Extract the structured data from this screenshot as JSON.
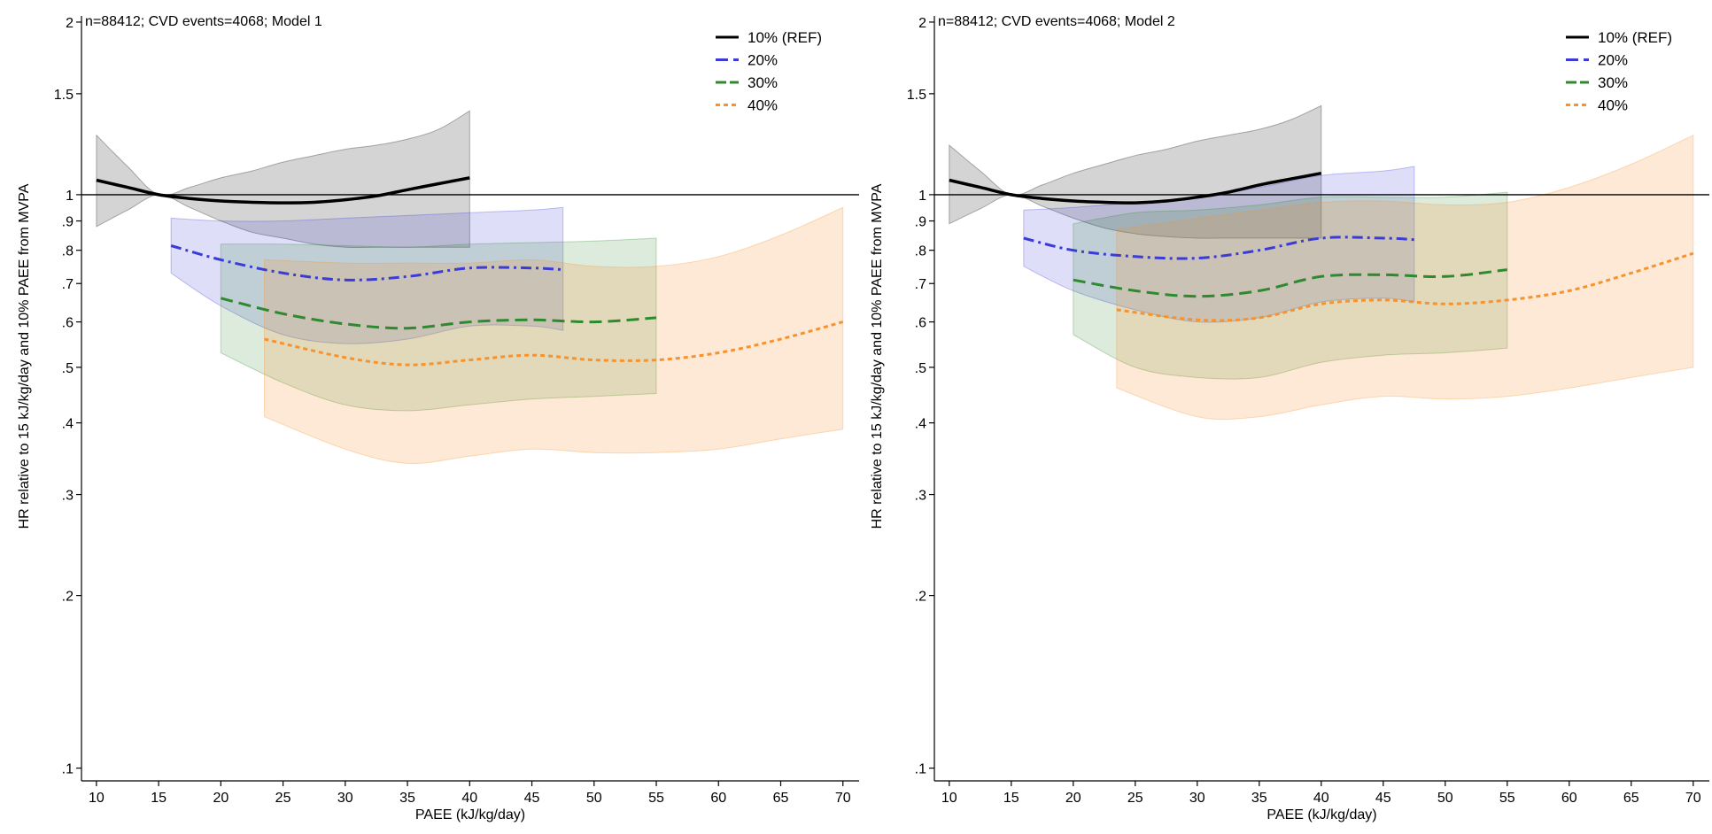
{
  "chart_data": [
    {
      "type": "line",
      "title": "n=88412; CVD events=4068; Model 1",
      "xlabel": "PAEE (kJ/kg/day)",
      "ylabel": "HR relative to 15 kJ/kg/day and 10% PAEE from MVPA",
      "xlim": [
        8.8,
        71.3
      ],
      "ylim": [
        0.095,
        2.05
      ],
      "y_scale": "log",
      "x_ticks": [
        10,
        15,
        20,
        25,
        30,
        35,
        40,
        45,
        50,
        55,
        60,
        65,
        70
      ],
      "y_ticks": [
        {
          "value": 2,
          "label": "2"
        },
        {
          "value": 1.5,
          "label": "1.5"
        },
        {
          "value": 1,
          "label": "1"
        },
        {
          "value": 0.9,
          "label": ".9"
        },
        {
          "value": 0.8,
          "label": ".8"
        },
        {
          "value": 0.7,
          "label": ".7"
        },
        {
          "value": 0.6,
          "label": ".6"
        },
        {
          "value": 0.5,
          "label": ".5"
        },
        {
          "value": 0.4,
          "label": ".4"
        },
        {
          "value": 0.3,
          "label": ".3"
        },
        {
          "value": 0.2,
          "label": ".2"
        },
        {
          "value": 0.1,
          "label": ".1"
        }
      ],
      "reference_line": 1,
      "grid": false,
      "legend_position": "top-right",
      "series": [
        {
          "name": "10% (REF)",
          "color": "#000000",
          "style": "solid",
          "x": [
            10,
            12.5,
            15,
            17.5,
            20,
            22.5,
            25,
            27.5,
            30,
            32.5,
            35,
            37.5,
            40
          ],
          "y": [
            1.06,
            1.03,
            1.0,
            0.985,
            0.975,
            0.97,
            0.968,
            0.97,
            0.98,
            0.995,
            1.02,
            1.045,
            1.07
          ],
          "lower": [
            0.88,
            0.94,
            1.0,
            0.95,
            0.9,
            0.86,
            0.84,
            0.82,
            0.81,
            0.81,
            0.81,
            0.81,
            0.81
          ],
          "upper": [
            1.27,
            1.12,
            1.0,
            1.03,
            1.07,
            1.1,
            1.14,
            1.17,
            1.2,
            1.22,
            1.25,
            1.3,
            1.4
          ]
        },
        {
          "name": "20%",
          "color": "#3b3bd6",
          "style": "dashdot",
          "x": [
            16,
            20,
            25,
            30,
            35,
            40,
            45,
            47.5
          ],
          "y": [
            0.815,
            0.77,
            0.73,
            0.71,
            0.72,
            0.745,
            0.745,
            0.74
          ],
          "lower": [
            0.73,
            0.64,
            0.57,
            0.55,
            0.56,
            0.59,
            0.59,
            0.58
          ],
          "upper": [
            0.91,
            0.9,
            0.9,
            0.91,
            0.92,
            0.93,
            0.94,
            0.95
          ]
        },
        {
          "name": "30%",
          "color": "#2f8a2f",
          "style": "dashed",
          "x": [
            20,
            25,
            30,
            35,
            40,
            45,
            50,
            55
          ],
          "y": [
            0.66,
            0.62,
            0.595,
            0.585,
            0.6,
            0.605,
            0.6,
            0.61
          ],
          "lower": [
            0.53,
            0.47,
            0.43,
            0.42,
            0.43,
            0.44,
            0.445,
            0.45
          ],
          "upper": [
            0.82,
            0.82,
            0.815,
            0.81,
            0.82,
            0.825,
            0.83,
            0.84
          ]
        },
        {
          "name": "40%",
          "color": "#f7932f",
          "style": "dotted",
          "x": [
            23.5,
            30,
            35,
            40,
            45,
            50,
            55,
            60,
            65,
            70
          ],
          "y": [
            0.56,
            0.52,
            0.505,
            0.515,
            0.525,
            0.515,
            0.515,
            0.53,
            0.56,
            0.6
          ],
          "lower": [
            0.41,
            0.36,
            0.34,
            0.35,
            0.36,
            0.355,
            0.355,
            0.36,
            0.375,
            0.39
          ],
          "upper": [
            0.77,
            0.76,
            0.76,
            0.76,
            0.77,
            0.75,
            0.75,
            0.78,
            0.85,
            0.95
          ]
        }
      ]
    },
    {
      "type": "line",
      "title": "n=88412; CVD events=4068; Model 2",
      "xlabel": "PAEE (kJ/kg/day)",
      "ylabel": "HR relative to 15 kJ/kg/day and 10% PAEE from MVPA",
      "xlim": [
        8.8,
        71.3
      ],
      "ylim": [
        0.095,
        2.05
      ],
      "y_scale": "log",
      "x_ticks": [
        10,
        15,
        20,
        25,
        30,
        35,
        40,
        45,
        50,
        55,
        60,
        65,
        70
      ],
      "y_ticks": [
        {
          "value": 2,
          "label": "2"
        },
        {
          "value": 1.5,
          "label": "1.5"
        },
        {
          "value": 1,
          "label": "1"
        },
        {
          "value": 0.9,
          "label": ".9"
        },
        {
          "value": 0.8,
          "label": ".8"
        },
        {
          "value": 0.7,
          "label": ".7"
        },
        {
          "value": 0.6,
          "label": ".6"
        },
        {
          "value": 0.5,
          "label": ".5"
        },
        {
          "value": 0.4,
          "label": ".4"
        },
        {
          "value": 0.3,
          "label": ".3"
        },
        {
          "value": 0.2,
          "label": ".2"
        },
        {
          "value": 0.1,
          "label": ".1"
        }
      ],
      "reference_line": 1,
      "grid": false,
      "legend_position": "top-right",
      "series": [
        {
          "name": "10% (REF)",
          "color": "#000000",
          "style": "solid",
          "x": [
            10,
            12.5,
            15,
            17.5,
            20,
            22.5,
            25,
            27.5,
            30,
            32.5,
            35,
            37.5,
            40
          ],
          "y": [
            1.06,
            1.03,
            1.0,
            0.985,
            0.975,
            0.97,
            0.968,
            0.975,
            0.99,
            1.01,
            1.04,
            1.065,
            1.09
          ],
          "lower": [
            0.89,
            0.945,
            1.0,
            0.955,
            0.91,
            0.875,
            0.855,
            0.845,
            0.84,
            0.84,
            0.84,
            0.84,
            0.84
          ],
          "upper": [
            1.22,
            1.1,
            1.0,
            1.04,
            1.09,
            1.13,
            1.17,
            1.2,
            1.24,
            1.27,
            1.3,
            1.35,
            1.43
          ]
        },
        {
          "name": "20%",
          "color": "#3b3bd6",
          "style": "dashdot",
          "x": [
            16,
            20,
            25,
            30,
            35,
            40,
            45,
            47.5
          ],
          "y": [
            0.84,
            0.8,
            0.78,
            0.775,
            0.8,
            0.84,
            0.84,
            0.835
          ],
          "lower": [
            0.75,
            0.68,
            0.63,
            0.6,
            0.61,
            0.65,
            0.66,
            0.65
          ],
          "upper": [
            0.94,
            0.95,
            0.97,
            0.99,
            1.03,
            1.08,
            1.1,
            1.12
          ]
        },
        {
          "name": "30%",
          "color": "#2f8a2f",
          "style": "dashed",
          "x": [
            20,
            25,
            30,
            35,
            40,
            45,
            50,
            55
          ],
          "y": [
            0.71,
            0.68,
            0.665,
            0.68,
            0.72,
            0.725,
            0.72,
            0.74
          ],
          "lower": [
            0.57,
            0.5,
            0.48,
            0.48,
            0.51,
            0.525,
            0.53,
            0.54
          ],
          "upper": [
            0.89,
            0.93,
            0.94,
            0.96,
            0.99,
            0.99,
            0.99,
            1.01
          ]
        },
        {
          "name": "40%",
          "color": "#f7932f",
          "style": "dotted",
          "x": [
            23.5,
            30,
            35,
            40,
            45,
            50,
            55,
            60,
            65,
            70
          ],
          "y": [
            0.63,
            0.605,
            0.61,
            0.645,
            0.655,
            0.645,
            0.655,
            0.68,
            0.73,
            0.79
          ],
          "lower": [
            0.46,
            0.41,
            0.41,
            0.43,
            0.445,
            0.44,
            0.445,
            0.46,
            0.48,
            0.5
          ],
          "upper": [
            0.87,
            0.91,
            0.94,
            0.97,
            0.975,
            0.96,
            0.97,
            1.03,
            1.13,
            1.27
          ]
        }
      ]
    }
  ]
}
